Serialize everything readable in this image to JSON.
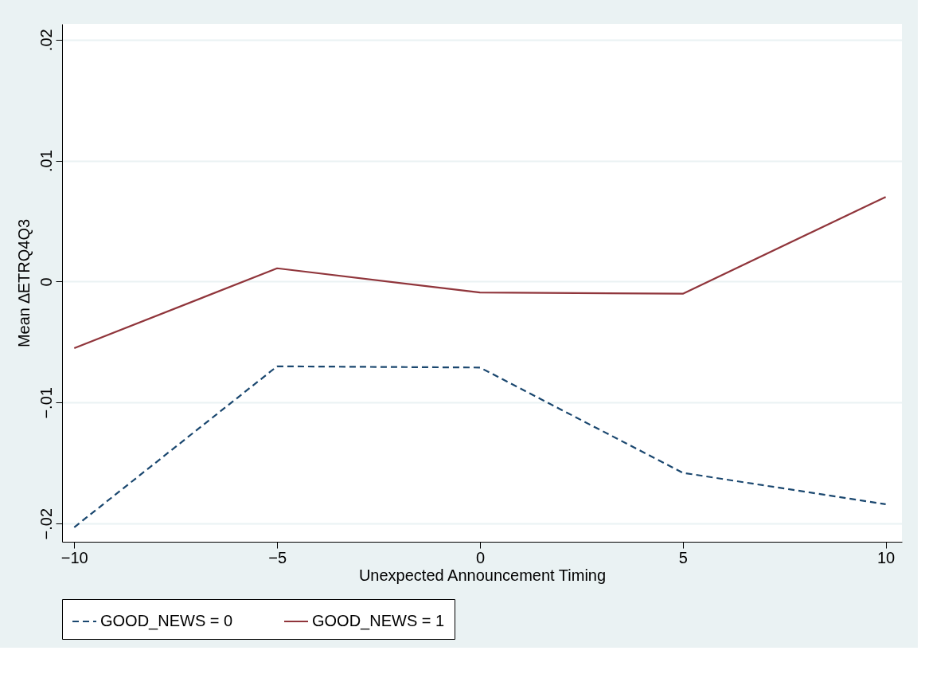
{
  "chart_data": {
    "type": "line",
    "xlabel": "Unexpected Announcement Timing",
    "ylabel": "Mean ∆ETRQ4Q3",
    "x": [
      -10,
      -5,
      0,
      5,
      10
    ],
    "series": [
      {
        "name": "GOOD_NEWS = 0",
        "color": "#1a476f",
        "line_style": "dashed",
        "values": [
          -0.0203,
          -0.007,
          -0.0071,
          -0.0158,
          -0.0184
        ]
      },
      {
        "name": "GOOD_NEWS = 1",
        "color": "#90353b",
        "line_style": "solid",
        "values": [
          -0.0055,
          0.0011,
          -0.0009,
          -0.001,
          0.007
        ]
      }
    ],
    "xlim": [
      -10.3,
      10.4
    ],
    "xticks": [
      {
        "value": -10,
        "label": "−10"
      },
      {
        "value": -5,
        "label": "−5"
      },
      0,
      5,
      10
    ],
    "ylim": [
      -0.0215,
      0.0213
    ],
    "yticks": [
      {
        "value": -0.02,
        "label": "−.02"
      },
      {
        "value": -0.01,
        "label": "−.01"
      },
      0,
      {
        "value": 0.01,
        "label": ".01"
      },
      {
        "value": 0.02,
        "label": ".02"
      }
    ],
    "grid": "y",
    "legend": "bottom",
    "marker": "none"
  }
}
